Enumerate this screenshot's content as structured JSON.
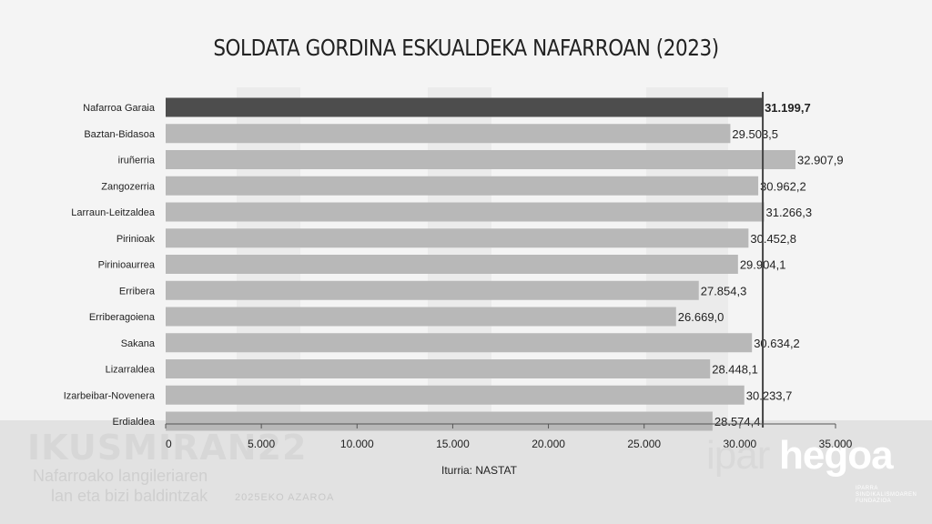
{
  "title": "SOLDATA GORDINA ESKUALDEKA NAFARROAN (2023)",
  "source": "Iturria: NASTAT",
  "watermark": {
    "brand": "IKUSMIRAN",
    "number": "22",
    "line1": "Nafarroako langileriaren",
    "line2": "lan eta bizi baldintzak",
    "date": "2025EKO AZAROA"
  },
  "logo": {
    "part1": "ipar",
    "part2": "hegoa",
    "sub_line1": "IPARRA",
    "sub_line2": "SINDIKALISMOAREN",
    "sub_line3": "FUNDAZIOA"
  },
  "colors": {
    "highlight_bar": "#4d4d4d",
    "bar": "#b8b8b8",
    "reference_line": "#444444",
    "text": "#222222"
  },
  "chart_data": {
    "type": "bar",
    "orientation": "horizontal",
    "categories": [
      "Nafarroa Garaia",
      "Baztan-Bidasoa",
      "iruñerria",
      "Zangozerria",
      "Larraun-Leitzaldea",
      "Pirinioak",
      "Pirinioaurrea",
      "Erribera",
      "Erriberagoiena",
      "Sakana",
      "Lizarraldea",
      "Izarbeibar-Novenera",
      "Erdialdea"
    ],
    "values": [
      31199.7,
      29503.5,
      32907.9,
      30962.2,
      31266.3,
      30452.8,
      29904.1,
      27854.3,
      26669.0,
      30634.2,
      28448.1,
      30233.7,
      28574.4
    ],
    "data_labels": [
      "31.199,7",
      "29.503,5",
      "32.907,9",
      "30.962,2",
      "31.266,3",
      "30.452,8",
      "29.904,1",
      "27.854,3",
      "26.669,0",
      "30.634,2",
      "28.448,1",
      "30.233,7",
      "28.574,4"
    ],
    "highlight_index": 0,
    "reference_line": 31199.7,
    "xlim": [
      0,
      35000
    ],
    "xticks": [
      0,
      5000,
      10000,
      15000,
      20000,
      25000,
      30000,
      35000
    ],
    "xtick_labels": [
      "0",
      "5.000",
      "10.000",
      "15.000",
      "20.000",
      "25.000",
      "30.000",
      "35.000"
    ],
    "grid": false
  }
}
